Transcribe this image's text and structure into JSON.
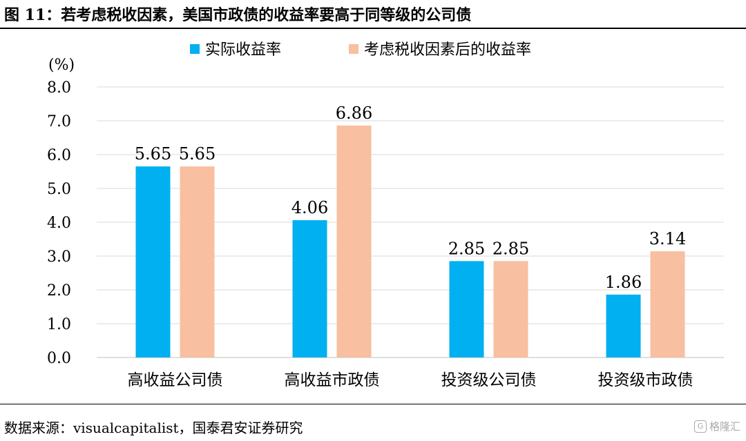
{
  "figure": {
    "title": "图 11：若考虑税收因素，美国市政债的收益率要高于同等级的公司债",
    "source": "数据来源：visualcapitalist，国泰君安证券研究",
    "watermark": "格隆汇"
  },
  "chart_data": {
    "type": "bar",
    "unit_label": "(%)",
    "categories": [
      "高收益公司债",
      "高收益市政债",
      "投资级公司债",
      "投资级市政债"
    ],
    "series": [
      {
        "name": "实际收益率",
        "color": "#00B0F0",
        "values": [
          5.65,
          4.06,
          2.85,
          1.86
        ],
        "labels": [
          "5.65",
          "4.06",
          "2.85",
          "1.86"
        ]
      },
      {
        "name": "考虑税收因素后的收益率",
        "color": "#F8BFA0",
        "values": [
          5.65,
          6.86,
          2.85,
          3.14
        ],
        "labels": [
          "5.65",
          "6.86",
          "2.85",
          "3.14"
        ]
      }
    ],
    "ylim": [
      0,
      8
    ],
    "yticks": [
      "0.0",
      "1.0",
      "2.0",
      "3.0",
      "4.0",
      "5.0",
      "6.0",
      "7.0",
      "8.0"
    ],
    "grid": true,
    "legend_position": "top-center"
  }
}
